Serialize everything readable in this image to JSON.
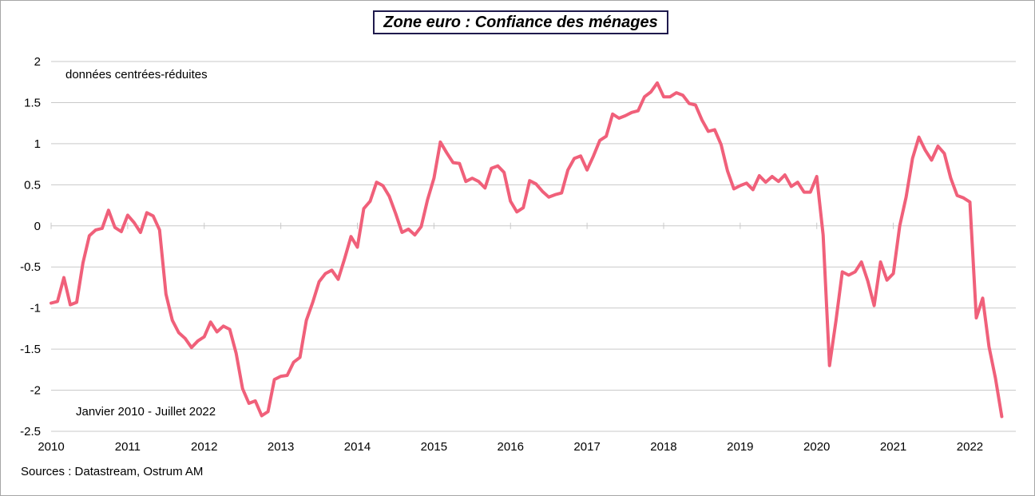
{
  "chart_data": {
    "type": "line",
    "title": "Zone euro : Confiance des ménages",
    "subtitle": "données centrées-réduites",
    "period_note": "Janvier 2010 - Juillet 2022",
    "source": "Sources : Datastream, Ostrum AM",
    "ylim": [
      -2.5,
      2
    ],
    "yticks": [
      2,
      1.5,
      1,
      0.5,
      0,
      -0.5,
      -1,
      -1.5,
      -2,
      -2.5
    ],
    "ytick_labels": [
      "2",
      "1.5",
      "1",
      "0.5",
      "0",
      "-0.5",
      "-1",
      "-1.5",
      "-2",
      "-2.5"
    ],
    "xlim": [
      2010,
      2022.6
    ],
    "xticks": [
      2010,
      2011,
      2012,
      2013,
      2014,
      2015,
      2016,
      2017,
      2018,
      2019,
      2020,
      2021,
      2022
    ],
    "xtick_labels": [
      "2010",
      "2011",
      "2012",
      "2013",
      "2014",
      "2015",
      "2016",
      "2017",
      "2018",
      "2019",
      "2020",
      "2021",
      "2022"
    ],
    "grid": true,
    "line_color": "#f0607a",
    "series": [
      {
        "x_start": "2010-01",
        "values": [
          -0.94,
          -0.92,
          -0.63,
          -0.96,
          -0.93,
          -0.45,
          -0.12,
          -0.05,
          -0.03,
          0.19,
          -0.02,
          -0.07,
          0.13,
          0.04,
          -0.08,
          0.16,
          0.12,
          -0.05,
          -0.83,
          -1.15,
          -1.3,
          -1.37,
          -1.48,
          -1.4,
          -1.35,
          -1.17,
          -1.29,
          -1.22,
          -1.26,
          -1.55,
          -1.98,
          -2.16,
          -2.13,
          -2.31,
          -2.26,
          -1.87,
          -1.83,
          -1.82,
          -1.66,
          -1.6,
          -1.15,
          -0.93,
          -0.68,
          -0.58,
          -0.54,
          -0.65,
          -0.4,
          -0.13,
          -0.26,
          0.21,
          0.3,
          0.53,
          0.49,
          0.36,
          0.15,
          -0.08,
          -0.04,
          -0.11,
          -0.01,
          0.32,
          0.58,
          1.02,
          0.89,
          0.77,
          0.76,
          0.54,
          0.58,
          0.54,
          0.46,
          0.7,
          0.73,
          0.65,
          0.3,
          0.17,
          0.22,
          0.55,
          0.51,
          0.42,
          0.35,
          0.38,
          0.4,
          0.68,
          0.82,
          0.85,
          0.68,
          0.85,
          1.04,
          1.09,
          1.36,
          1.31,
          1.34,
          1.38,
          1.4,
          1.57,
          1.63,
          1.74,
          1.57,
          1.57,
          1.62,
          1.59,
          1.49,
          1.47,
          1.29,
          1.15,
          1.17,
          0.99,
          0.67,
          0.45,
          0.49,
          0.52,
          0.44,
          0.61,
          0.53,
          0.6,
          0.54,
          0.62,
          0.48,
          0.53,
          0.41,
          0.41,
          0.6,
          -0.11,
          -1.7,
          -1.16,
          -0.56,
          -0.6,
          -0.56,
          -0.44,
          -0.67,
          -0.97,
          -0.44,
          -0.66,
          -0.58,
          0.0,
          0.35,
          0.82,
          1.08,
          0.92,
          0.8,
          0.97,
          0.88,
          0.58,
          0.37,
          0.34,
          0.29,
          -1.12,
          -0.88,
          -1.47,
          -1.85,
          -2.32
        ]
      }
    ]
  }
}
